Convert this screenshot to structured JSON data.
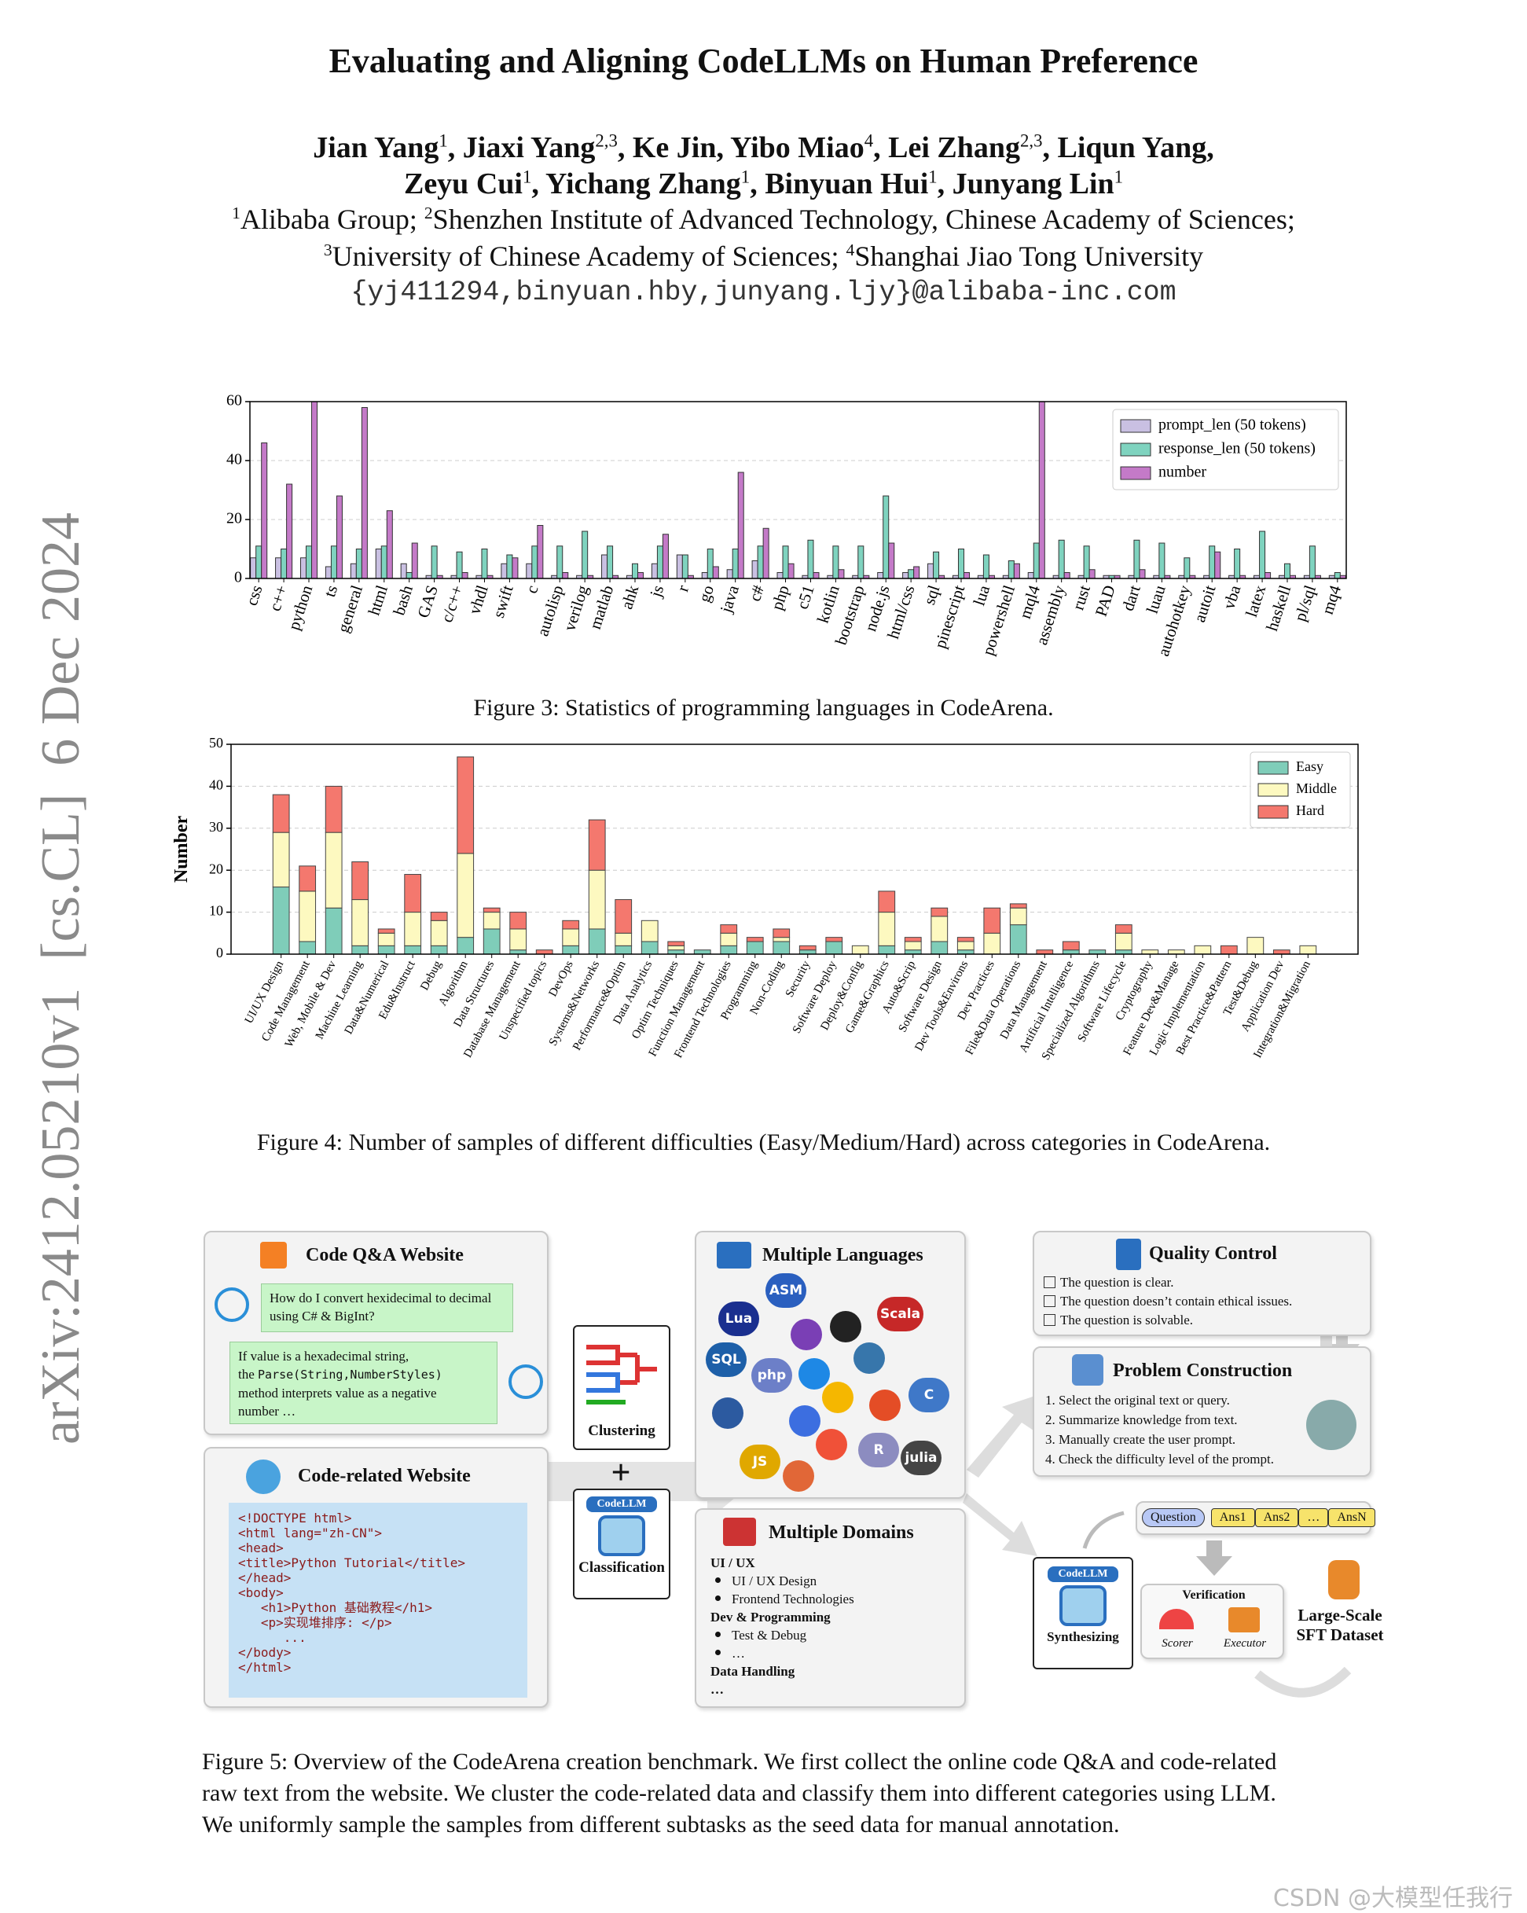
{
  "header": {
    "title": "Evaluating and Aligning CodeLLMs on Human Preference",
    "authors": [
      [
        {
          "text": "Jian Yang",
          "sup": "1"
        },
        {
          "text": ", Jiaxi Yang",
          "sup": "2,3"
        },
        {
          "text": ", Ke Jin, Yibo Miao",
          "sup": "4"
        },
        {
          "text": ", Lei Zhang",
          "sup": "2,3"
        },
        {
          "text": ", Liqun Yang,"
        }
      ],
      [
        {
          "text": "Zeyu Cui",
          "sup": "1"
        },
        {
          "text": ", Yichang Zhang",
          "sup": "1"
        },
        {
          "text": ", Binyuan Hui",
          "sup": "1"
        },
        {
          "text": ", Junyang Lin",
          "sup": "1"
        }
      ]
    ],
    "affiliations": [
      [
        {
          "sup": "1",
          "text": "Alibaba Group; "
        },
        {
          "sup": "2",
          "text": "Shenzhen Institute of Advanced Technology, Chinese Academy of Sciences;"
        }
      ],
      [
        {
          "sup": "3",
          "text": "University of Chinese Academy of Sciences; "
        },
        {
          "sup": "4",
          "text": "Shanghai Jiao Tong University"
        }
      ]
    ],
    "email": "{yj411294,binyuan.hby,junyang.ljy}@alibaba-inc.com"
  },
  "sidebar": "arXiv:2412.05210v1  [cs.CL]  6 Dec 2024",
  "chart_data": [
    {
      "type": "bar",
      "caption": "Figure 3: Statistics of programming languages in CodeArena.",
      "categories": [
        "css",
        "c++",
        "python",
        "ts",
        "general",
        "html",
        "bash",
        "GAS",
        "c/c++",
        "vhdl",
        "swift",
        "c",
        "autolisp",
        "verilog",
        "matlab",
        "ahk",
        "js",
        "r",
        "go",
        "java",
        "c#",
        "php",
        "c51",
        "kotlin",
        "bootstrap",
        "node.js",
        "html/css",
        "sql",
        "pinescript",
        "lua",
        "powershell",
        "mql4",
        "assembly",
        "rust",
        "PAD",
        "dart",
        "luau",
        "autohotkey",
        "autoit",
        "vba",
        "latex",
        "haskell",
        "pl/sql",
        "mq4"
      ],
      "series": [
        {
          "name": "prompt_len (50 tokens)",
          "color": "#c9c0e2",
          "values": [
            7,
            7,
            7,
            4,
            5,
            10,
            5,
            1,
            1,
            1,
            5,
            5,
            1,
            1,
            8,
            1,
            5,
            8,
            2,
            3,
            6,
            2,
            1,
            1,
            1,
            2,
            2,
            5,
            1,
            1,
            1,
            2,
            1,
            1,
            1,
            1,
            1,
            1,
            1,
            1,
            1,
            1,
            1,
            1
          ]
        },
        {
          "name": "response_len (50 tokens)",
          "color": "#7fd3bf",
          "values": [
            11,
            10,
            11,
            11,
            10,
            11,
            2,
            11,
            9,
            10,
            8,
            11,
            11,
            16,
            11,
            5,
            11,
            8,
            10,
            10,
            11,
            11,
            13,
            11,
            11,
            28,
            3,
            9,
            10,
            8,
            6,
            12,
            13,
            11,
            1,
            13,
            12,
            7,
            11,
            10,
            16,
            5,
            11,
            2
          ]
        },
        {
          "name": "number",
          "color": "#c47ac8",
          "values": [
            46,
            32,
            60,
            28,
            58,
            23,
            12,
            1,
            2,
            1,
            7,
            18,
            2,
            1,
            1,
            2,
            15,
            1,
            4,
            36,
            17,
            5,
            2,
            3,
            1,
            12,
            4,
            1,
            2,
            1,
            5,
            60,
            2,
            3,
            1,
            3,
            1,
            1,
            9,
            1,
            2,
            1,
            1,
            1
          ]
        }
      ],
      "ylim": [
        0,
        60
      ],
      "yticks": [
        0,
        20,
        40,
        60
      ],
      "grid": true,
      "legend": "upper right"
    },
    {
      "type": "bar",
      "stacked": true,
      "caption": "Figure 4: Number of samples of different difficulties (Easy/Medium/Hard) across categories in CodeArena.",
      "ylabel": "Number",
      "categories": [
        "UI/UX Design",
        "Code Management",
        "Web, Mobile & Dev",
        "Machine Learning",
        "Data&Numerical",
        "Edu&Instruct",
        "Debug",
        "Algorithm",
        "Data Structures",
        "Database Management",
        "Unspecified topics",
        "DevOps",
        "Systems&Networks",
        "Performance&Optim",
        "Data Analytics",
        "Optim Techniques",
        "Function Management",
        "Frontend Technologies",
        "Programming",
        "Non-Coding",
        "Security",
        "Software Deploy",
        "Deploy&Config",
        "Game&Graphics",
        "Auto&Scrip",
        "Software Design",
        "Dev Tools&Environs",
        "Dev Practices",
        "File&Data Operations",
        "Data Management",
        "Artificial Intelligence",
        "Specialized Algorithms",
        "Software Lifecycle",
        "Cryptography",
        "Feature Dev&Manage",
        "Logic Implementation",
        "Best Practice&Pattern",
        "Test&Debug",
        "Application Dev",
        "Integration&Migration"
      ],
      "series": [
        {
          "name": "Easy",
          "color": "#7fcdb9",
          "values": [
            16,
            3,
            11,
            2,
            2,
            2,
            2,
            4,
            6,
            1,
            0,
            2,
            6,
            2,
            3,
            1,
            1,
            2,
            3,
            3,
            1,
            3,
            0,
            2,
            1,
            3,
            1,
            0,
            7,
            0,
            1,
            1,
            1,
            0,
            0,
            0,
            0,
            0,
            0,
            0
          ]
        },
        {
          "name": "Middle",
          "color": "#fdf9c0",
          "values": [
            13,
            12,
            18,
            11,
            3,
            8,
            6,
            20,
            4,
            5,
            0,
            4,
            14,
            3,
            5,
            1,
            0,
            3,
            0,
            1,
            0,
            0,
            2,
            8,
            2,
            6,
            2,
            5,
            4,
            0,
            0,
            0,
            4,
            1,
            1,
            2,
            0,
            4,
            0,
            2
          ]
        },
        {
          "name": "Hard",
          "color": "#f4786e",
          "values": [
            9,
            6,
            11,
            9,
            1,
            9,
            2,
            23,
            1,
            4,
            1,
            2,
            12,
            8,
            0,
            1,
            0,
            2,
            1,
            2,
            1,
            1,
            0,
            5,
            1,
            2,
            1,
            6,
            1,
            1,
            2,
            0,
            2,
            0,
            0,
            0,
            2,
            0,
            1,
            0
          ]
        }
      ],
      "ylim": [
        0,
        50
      ],
      "yticks": [
        0,
        10,
        20,
        30,
        40,
        50
      ],
      "grid": true,
      "legend": "upper right"
    }
  ],
  "figure5": {
    "qa": {
      "title": "Code Q&A Website",
      "question": "How do I convert hexidecimal to decimal using C# & BigInt?",
      "answer": [
        [
          {
            "text": "If value is a hexadecimal string,"
          }
        ],
        [
          {
            "text": "the "
          },
          {
            "text": "Parse(String,NumberStyles)",
            "mono": true
          }
        ],
        [
          {
            "text": "method  interprets value as a negative"
          }
        ],
        [
          {
            "text": "number …"
          }
        ]
      ]
    },
    "web": {
      "title": "Code-related Website",
      "code": [
        "<!DOCTYPE html>",
        "<html lang=\"zh-CN\">",
        "<head>",
        "<title>Python Tutorial</title>",
        "</head>",
        "<body>",
        "   <h1>Python 基础教程</h1>",
        "   <p>实现堆排序: </p>",
        "      ...",
        "</body>",
        "</html>"
      ]
    },
    "clustering": "Clustering",
    "plus": "+",
    "classification": "Classification",
    "codellm": "CodeLLM",
    "languages": {
      "title": "Multiple Languages",
      "icons": [
        "ASM",
        "Lua",
        "Scala",
        "SQL",
        "php",
        "R",
        "C",
        "JS",
        "julia"
      ]
    },
    "domains": {
      "title": "Multiple Domains",
      "groups": [
        {
          "heading": "UI / UX",
          "items": [
            "UI / UX Design",
            "Frontend Technologies"
          ]
        },
        {
          "heading": "Dev & Programming",
          "items": [
            "Test & Debug",
            "…"
          ]
        },
        {
          "heading": "Data Handling",
          "items": []
        }
      ],
      "more": "…"
    },
    "quality": {
      "title": "Quality Control",
      "checks": [
        "The question is clear.",
        "The question doesn’t contain ethical issues.",
        "The question is solvable."
      ]
    },
    "construction": {
      "title": "Problem Construction",
      "steps": [
        "1. Select the original text or query.",
        "2. Summarize knowledge from text.",
        "3. Manually create the user prompt.",
        "4. Check the difficulty level of the prompt."
      ]
    },
    "synthesis": {
      "question": "Question",
      "answers": [
        "Ans1",
        "Ans2",
        "…",
        "AnsN"
      ],
      "verification": "Verification",
      "scorer": "Scorer",
      "executor": "Executor",
      "codellm": "CodeLLM",
      "synthesizing": "Synthesizing",
      "dataset": [
        "Large-Scale",
        "SFT Dataset"
      ]
    },
    "caption": [
      "Figure 5: Overview of the CodeArena creation benchmark. We first collect the online code Q&A and code-related",
      "raw text from the website. We cluster the code-related data and classify them into different categories using LLM.",
      "We uniformly sample the samples from different subtasks as the seed data for manual annotation."
    ]
  },
  "watermark": "CSDN @大模型任我行"
}
